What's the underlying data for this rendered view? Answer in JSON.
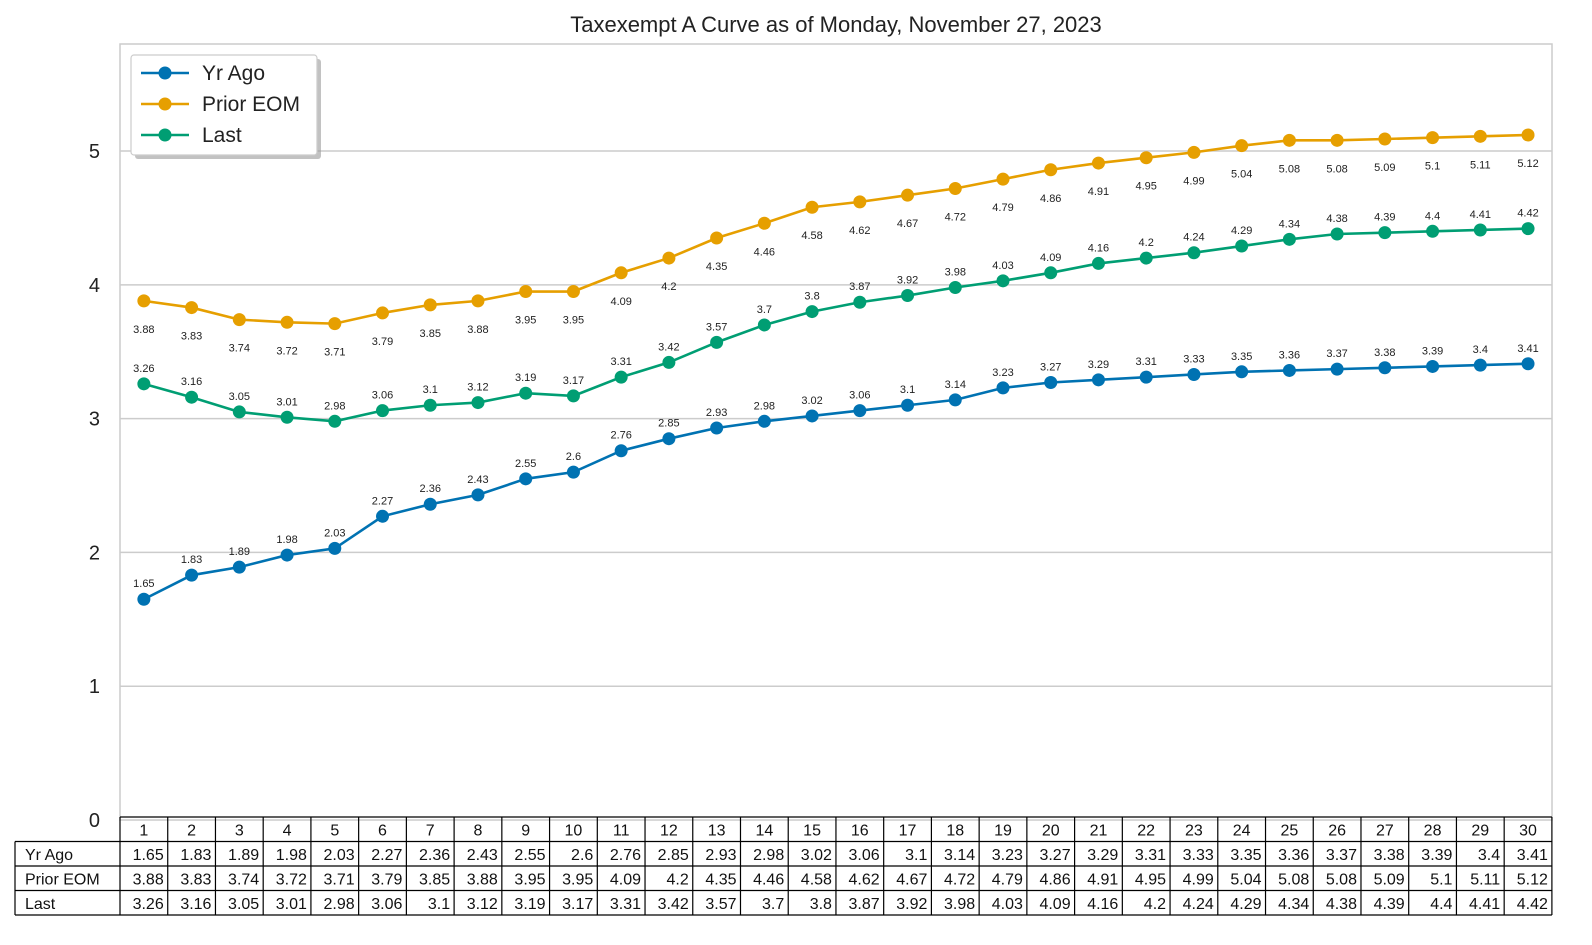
{
  "chart_data": {
    "type": "line",
    "title": "Taxexempt A Curve as of Monday, November 27, 2023",
    "xlabel": "",
    "ylabel": "",
    "ylim": [
      0,
      5.8
    ],
    "yticks": [
      0,
      1,
      2,
      3,
      4,
      5
    ],
    "grid": "horizontal",
    "legend_position": "top-left",
    "x": [
      1,
      2,
      3,
      4,
      5,
      6,
      7,
      8,
      9,
      10,
      11,
      12,
      13,
      14,
      15,
      16,
      17,
      18,
      19,
      20,
      21,
      22,
      23,
      24,
      25,
      26,
      27,
      28,
      29,
      30
    ],
    "series": [
      {
        "name": "Yr Ago",
        "color": "#0072b2",
        "label_position": "above",
        "values": [
          1.65,
          1.83,
          1.89,
          1.98,
          2.03,
          2.27,
          2.36,
          2.43,
          2.55,
          2.6,
          2.76,
          2.85,
          2.93,
          2.98,
          3.02,
          3.06,
          3.1,
          3.14,
          3.23,
          3.27,
          3.29,
          3.31,
          3.33,
          3.35,
          3.36,
          3.37,
          3.38,
          3.39,
          3.4,
          3.41
        ]
      },
      {
        "name": "Prior EOM",
        "color": "#e69f00",
        "label_position": "below",
        "values": [
          3.88,
          3.83,
          3.74,
          3.72,
          3.71,
          3.79,
          3.85,
          3.88,
          3.95,
          3.95,
          4.09,
          4.2,
          4.35,
          4.46,
          4.58,
          4.62,
          4.67,
          4.72,
          4.79,
          4.86,
          4.91,
          4.95,
          4.99,
          5.04,
          5.08,
          5.08,
          5.09,
          5.1,
          5.11,
          5.12
        ]
      },
      {
        "name": "Last",
        "color": "#009e73",
        "label_position": "above",
        "values": [
          3.26,
          3.16,
          3.05,
          3.01,
          2.98,
          3.06,
          3.1,
          3.12,
          3.19,
          3.17,
          3.31,
          3.42,
          3.57,
          3.7,
          3.8,
          3.87,
          3.92,
          3.98,
          4.03,
          4.09,
          4.16,
          4.2,
          4.24,
          4.29,
          4.34,
          4.38,
          4.39,
          4.4,
          4.41,
          4.42
        ]
      }
    ]
  }
}
